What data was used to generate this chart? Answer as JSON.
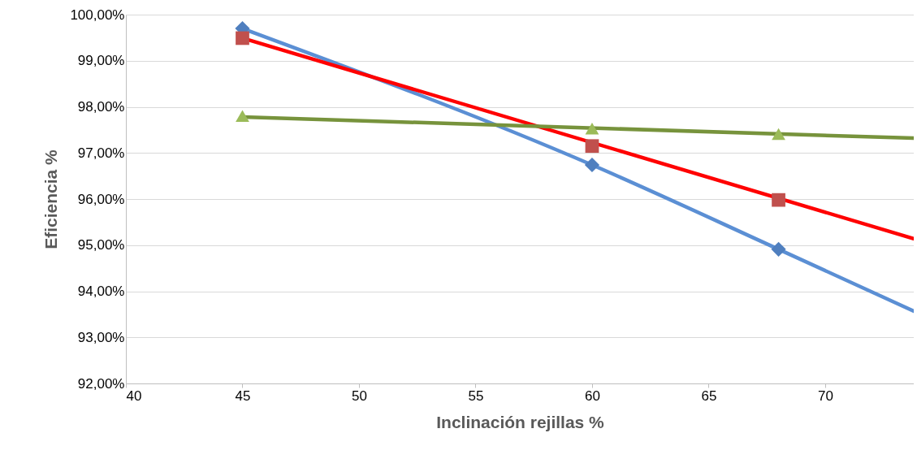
{
  "chart_data": {
    "type": "scatter",
    "xlabel": "Inclinación rejillas %",
    "ylabel": "Eficiencia %",
    "xlim": [
      40,
      73.8
    ],
    "xticks": [
      40,
      45,
      50,
      55,
      60,
      65,
      70
    ],
    "ylim": [
      92,
      100
    ],
    "yticks": [
      {
        "value": 92,
        "label": "92,00%"
      },
      {
        "value": 93,
        "label": "93,00%"
      },
      {
        "value": 94,
        "label": "94,00%"
      },
      {
        "value": 95,
        "label": "95,00%"
      },
      {
        "value": 96,
        "label": "96,00%"
      },
      {
        "value": 97,
        "label": "97,00%"
      },
      {
        "value": 98,
        "label": "98,00%"
      },
      {
        "value": 99,
        "label": "99,00%"
      },
      {
        "value": 100,
        "label": "100,00%"
      }
    ],
    "grid": "y",
    "series": [
      {
        "type": "line",
        "color": "#5b8fd4",
        "x": [
          45,
          60,
          68,
          73.8
        ],
        "values": [
          99.7,
          96.74,
          94.91,
          93.57
        ],
        "marker": "none",
        "line_style": "solid"
      },
      {
        "type": "line",
        "color": "#ff0000",
        "x": [
          45,
          73.8
        ],
        "values": [
          99.49,
          95.14
        ],
        "marker": "none",
        "line_style": "solid"
      },
      {
        "type": "line",
        "color": "#77933c",
        "x": [
          45,
          73.8
        ],
        "values": [
          97.78,
          97.32
        ],
        "marker": "none",
        "line_style": "solid"
      },
      {
        "color": "#4f7fbf",
        "x": [
          45,
          60,
          68
        ],
        "values": [
          99.7,
          96.74,
          94.91
        ],
        "marker": "diamond"
      },
      {
        "color": "#c0504d",
        "x": [
          45,
          60,
          68
        ],
        "values": [
          99.49,
          97.15,
          95.98
        ],
        "marker": "square"
      },
      {
        "color": "#9bbb59",
        "x": [
          45,
          60,
          68
        ],
        "values": [
          97.8,
          97.53,
          97.41
        ],
        "marker": "triangle"
      }
    ]
  }
}
